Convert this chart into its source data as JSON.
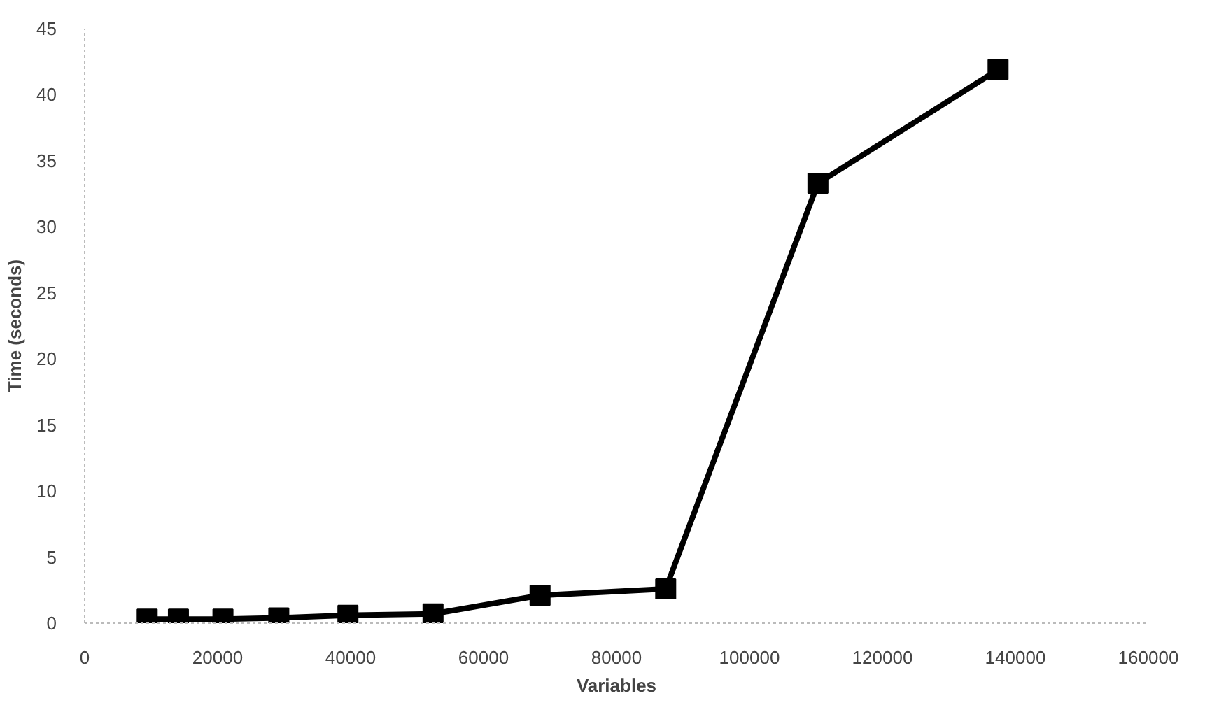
{
  "chart_data": {
    "type": "line",
    "xlabel": "Variables",
    "ylabel": "Time (seconds)",
    "x": [
      9400,
      14100,
      20800,
      29200,
      39600,
      52400,
      68500,
      87400,
      110300,
      137400
    ],
    "series": [
      {
        "color": "#000000",
        "values": [
          0.3,
          0.3,
          0.3,
          0.4,
          0.6,
          0.7,
          2.1,
          2.6,
          33.3,
          41.9
        ]
      }
    ],
    "xlim": [
      0,
      160000
    ],
    "xticks": [
      0,
      20000,
      40000,
      60000,
      80000,
      100000,
      120000,
      140000,
      160000
    ],
    "ylim": [
      0,
      45
    ],
    "yticks": [
      0,
      5,
      10,
      15,
      20,
      25,
      30,
      35,
      40,
      45
    ],
    "grid": false,
    "marker": "square",
    "line_style": "solid"
  }
}
